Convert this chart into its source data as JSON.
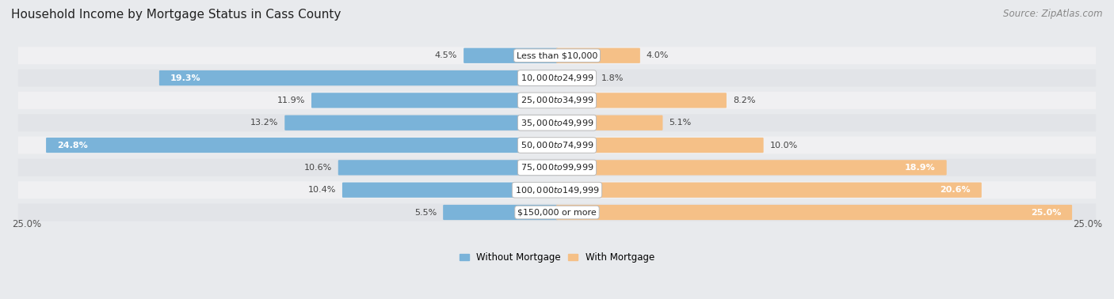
{
  "title": "Household Income by Mortgage Status in Cass County",
  "source": "Source: ZipAtlas.com",
  "categories": [
    "Less than $10,000",
    "$10,000 to $24,999",
    "$25,000 to $34,999",
    "$35,000 to $49,999",
    "$50,000 to $74,999",
    "$75,000 to $99,999",
    "$100,000 to $149,999",
    "$150,000 or more"
  ],
  "without_mortgage": [
    4.5,
    19.3,
    11.9,
    13.2,
    24.8,
    10.6,
    10.4,
    5.5
  ],
  "with_mortgage": [
    4.0,
    1.8,
    8.2,
    5.1,
    10.0,
    18.9,
    20.6,
    25.0
  ],
  "color_without": "#7ab3d9",
  "color_with": "#f5c087",
  "axis_max": 25.0,
  "bg_color": "#e8eaed",
  "row_bg_color": "#f0f0f2",
  "row_bg_color2": "#e2e4e8",
  "title_fontsize": 11,
  "label_fontsize": 8,
  "value_fontsize": 8,
  "tick_fontsize": 8.5,
  "source_fontsize": 8.5
}
